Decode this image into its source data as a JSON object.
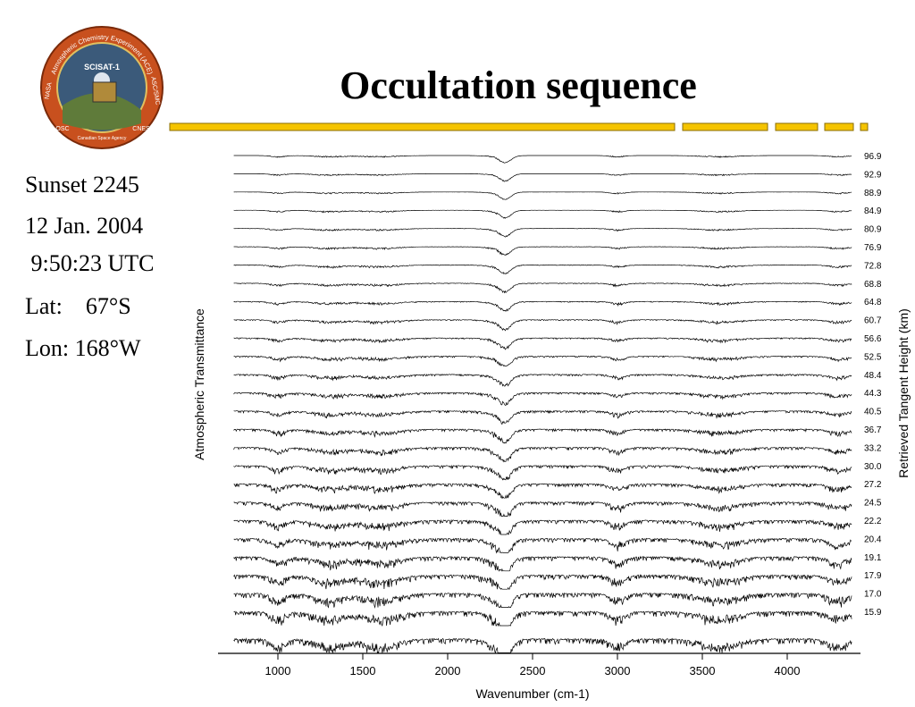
{
  "slide": {
    "title": "Occultation sequence",
    "info": [
      "Sunset 2245",
      "12 Jan. 2004",
      " 9:50:23 UTC",
      "Lat:    67°S",
      "Lon: 168°W"
    ],
    "logo_text": {
      "ring_top": "Atmospheric Chemistry Experiment (ACE)",
      "center": "SCISAT-1",
      "left": "NASA",
      "right": "ASC/SMC",
      "bottom_left": "OSC",
      "bottom_right": "CNES",
      "bottom_center": "Canadian Space Agency"
    },
    "colors": {
      "accent_bar": "#f5c400",
      "accent_border": "#8a6d00",
      "logo_ring": "#c8501e"
    }
  },
  "chart_data": {
    "type": "line",
    "xlabel": "Wavenumber (cm-1)",
    "ylabel_left": "Atmospheric Transmittance",
    "ylabel_right": "Retrieved Tangent Height (km)",
    "xlim": [
      700,
      4400
    ],
    "xticks": [
      1000,
      1500,
      2000,
      2500,
      3000,
      3500,
      4000
    ],
    "tangent_heights_km": [
      "96.9",
      "92.9",
      "88.9",
      "84.9",
      "80.9",
      "76.9",
      "72.8",
      "68.8",
      "64.8",
      "60.7",
      "56.6",
      "52.5",
      "48.4",
      "44.3",
      "40.5",
      "36.7",
      "33.2",
      "30.0",
      "27.2",
      "24.5",
      "22.2",
      "20.4",
      "19.1",
      "17.9",
      "17.0",
      "15.9"
    ],
    "series_count": 27,
    "absorption_bands_cm-1": [
      {
        "center": 1000,
        "width": 60
      },
      {
        "center": 1300,
        "width": 120
      },
      {
        "center": 1600,
        "width": 150
      },
      {
        "center": 2300,
        "width": 90
      },
      {
        "center": 3000,
        "width": 60
      },
      {
        "center": 3600,
        "width": 150
      },
      {
        "center": 4300,
        "width": 80
      }
    ]
  }
}
